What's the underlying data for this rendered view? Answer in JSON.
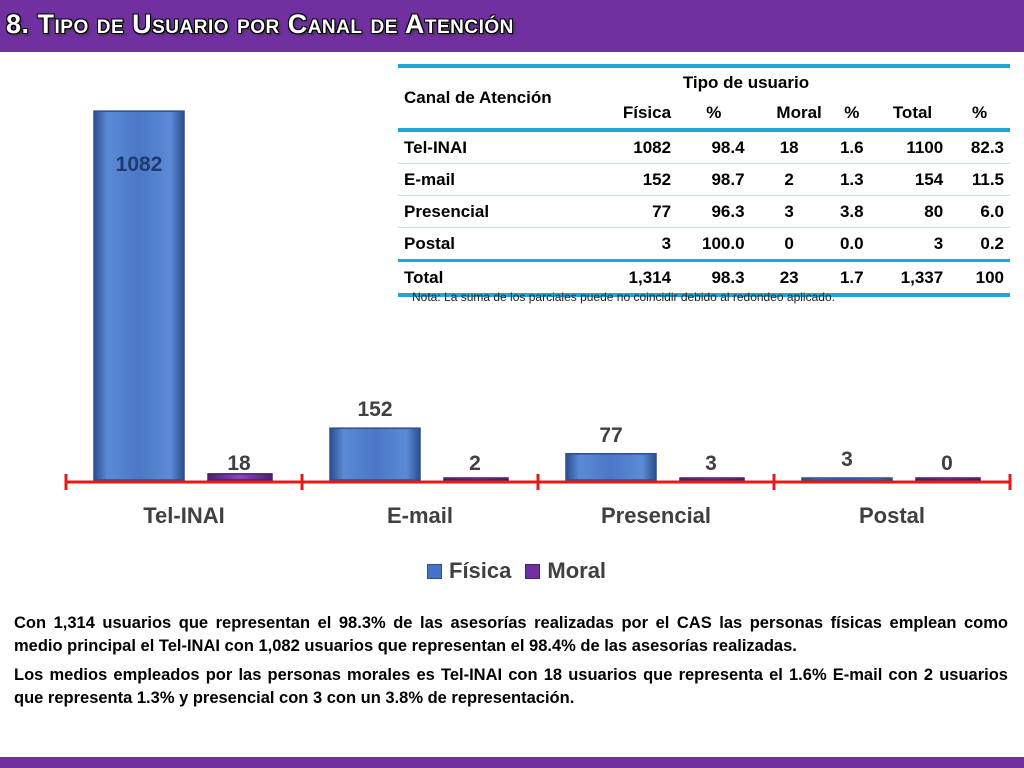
{
  "header": {
    "title": "8. Tipo de Usuario por Canal de Atención"
  },
  "colors": {
    "fisica": "#4472c4",
    "moral": "#7030a0",
    "accent": "#7030a0",
    "axis": "#e41b1b",
    "table_rule": "#1fa6d8"
  },
  "chart_data": {
    "type": "bar",
    "categories": [
      "Tel-INAI",
      "E-mail",
      "Presencial",
      "Postal"
    ],
    "series": [
      {
        "name": "Física",
        "values": [
          1082,
          152,
          77,
          3
        ]
      },
      {
        "name": "Moral",
        "values": [
          18,
          2,
          3,
          0
        ]
      }
    ],
    "ylim": [
      0,
      1100
    ],
    "legend": "bottom",
    "grid": false
  },
  "table": {
    "head_channel": "Canal de Atención",
    "head_group": "Tipo de usuario",
    "columns": [
      "Física",
      "%",
      "Moral",
      "%",
      "Total",
      "%"
    ],
    "rows": [
      [
        "Tel-INAI",
        "1082",
        "98.4",
        "18",
        "1.6",
        "1100",
        "82.3"
      ],
      [
        "E-mail",
        "152",
        "98.7",
        "2",
        "1.3",
        "154",
        "11.5"
      ],
      [
        "Presencial",
        "77",
        "96.3",
        "3",
        "3.8",
        "80",
        "6.0"
      ],
      [
        "Postal",
        "3",
        "100.0",
        "0",
        "0.0",
        "3",
        "0.2"
      ],
      [
        "Total",
        "1,314",
        "98.3",
        "23",
        "1.7",
        "1,337",
        "100"
      ]
    ],
    "note": "Nota: La suma de los parciales puede no coincidir debido al redondeo aplicado."
  },
  "description": [
    "Con 1,314 usuarios que representan el 98.3% de las asesorías realizadas por el CAS las personas físicas emplean como medio principal el Tel-INAI con 1,082 usuarios que representan el 98.4% de las asesorías realizadas.",
    "Los medios empleados por las personas morales es Tel-INAI con 18 usuarios que representa el 1.6%  E-mail con 2 usuarios que representa 1.3%  y presencial con 3  con un 3.8% de representación."
  ]
}
